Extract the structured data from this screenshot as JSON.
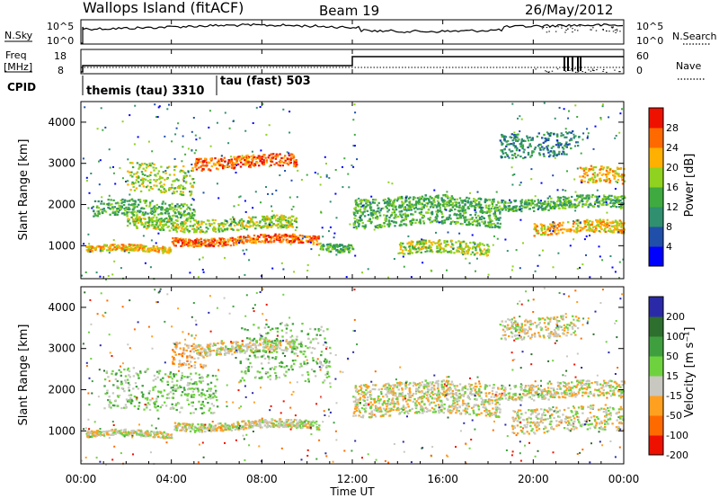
{
  "header": {
    "site": "Wallops Island (fitACF)",
    "beam": "Beam 19",
    "date": "26/May/2012"
  },
  "top_panels": {
    "nsky_label": "N.Sky",
    "nsky_ticks": [
      "10^5",
      "10^0"
    ],
    "nsearch_label": "N.Search",
    "nsearch_ticks": [
      "10^5",
      "10^0"
    ],
    "freq_label_1": "Freq",
    "freq_label_2": "[MHz]",
    "freq_ticks": [
      "18",
      "8"
    ],
    "nave_label": "Nave",
    "nave_ticks": [
      "60",
      "0"
    ],
    "cpid_label": "CPID",
    "cpid_1": "themis (tau) 3310",
    "cpid_2": "tau (fast) 503"
  },
  "time_axis": {
    "ticks": [
      "00:00",
      "04:00",
      "08:00",
      "12:00",
      "16:00",
      "20:00",
      "00:00"
    ],
    "label": "Time UT"
  },
  "chart_data": [
    {
      "type": "heatmap",
      "name": "power",
      "ylabel": "Slant Range [km]",
      "yticks": [
        "1000",
        "2000",
        "3000",
        "4000"
      ],
      "ylim": [
        200,
        4500
      ],
      "xlim_hours": [
        0,
        24
      ],
      "colorbar_label": "Power [dB]",
      "colorbar_ticks": [
        "4",
        "8",
        "12",
        "16",
        "20",
        "24",
        "28"
      ],
      "colors": [
        "#0000ff",
        "#1f4fa8",
        "#2f8f6f",
        "#3faa3f",
        "#8fd21f",
        "#ffb000",
        "#ff6a00",
        "#ee1100"
      ],
      "bands": [
        {
          "t": [
            0.2,
            4.0
          ],
          "r": [
            850,
            1000
          ],
          "level": 5
        },
        {
          "t": [
            4.0,
            10.5
          ],
          "r": [
            1050,
            1250
          ],
          "level": 6
        },
        {
          "t": [
            5.0,
            9.5
          ],
          "r": [
            2900,
            3200
          ],
          "level": 6
        },
        {
          "t": [
            2.0,
            9.5
          ],
          "r": [
            1400,
            1700
          ],
          "level": 4
        },
        {
          "t": [
            10.5,
            12.0
          ],
          "r": [
            900,
            1100
          ],
          "level": 3
        },
        {
          "t": [
            12.0,
            18.5
          ],
          "r": [
            1500,
            1900
          ],
          "level": 3
        },
        {
          "t": [
            12.0,
            24.0
          ],
          "r": [
            1900,
            2200
          ],
          "level": 3
        },
        {
          "t": [
            14.0,
            18.0
          ],
          "r": [
            800,
            1100
          ],
          "level": 4
        },
        {
          "t": [
            20.0,
            24.0
          ],
          "r": [
            1300,
            1600
          ],
          "level": 5
        },
        {
          "t": [
            22.0,
            24.0
          ],
          "r": [
            2500,
            2900
          ],
          "level": 5
        },
        {
          "t": [
            0.5,
            5.0
          ],
          "r": [
            1700,
            2100
          ],
          "level": 3
        },
        {
          "t": [
            2.0,
            5.0
          ],
          "r": [
            2300,
            3000
          ],
          "level": 4
        },
        {
          "t": [
            18.5,
            22.0
          ],
          "r": [
            3200,
            3800
          ],
          "level": 2
        }
      ]
    },
    {
      "type": "heatmap",
      "name": "velocity",
      "ylabel": "Slant Range [km]",
      "yticks": [
        "1000",
        "2000",
        "3000",
        "4000"
      ],
      "ylim": [
        200,
        4500
      ],
      "xlim_hours": [
        0,
        24
      ],
      "colorbar_label": "Velocity [m s⁻¹]",
      "colorbar_ticks": [
        "200",
        "100",
        "50",
        "15",
        "-15",
        "-50",
        "-100",
        "-200"
      ],
      "colors": [
        "#2a2aa8",
        "#2e6e2e",
        "#3f9f3f",
        "#6ed23f",
        "#c8c8c0",
        "#ffa020",
        "#ff6a00",
        "#ee1100"
      ],
      "bands": [
        {
          "t": [
            0.2,
            4.0
          ],
          "r": [
            850,
            1000
          ],
          "level": 4
        },
        {
          "t": [
            4.0,
            10.5
          ],
          "r": [
            1050,
            1250
          ],
          "level": 4
        },
        {
          "t": [
            5.0,
            9.5
          ],
          "r": [
            2900,
            3200
          ],
          "level": 4
        },
        {
          "t": [
            4.0,
            5.5
          ],
          "r": [
            2600,
            3200
          ],
          "level": 5
        },
        {
          "t": [
            12.0,
            24.0
          ],
          "r": [
            1800,
            2200
          ],
          "level": 4
        },
        {
          "t": [
            12.0,
            18.5
          ],
          "r": [
            1400,
            1800
          ],
          "level": 4
        },
        {
          "t": [
            1.0,
            6.0
          ],
          "r": [
            1500,
            2500
          ],
          "level": 3
        },
        {
          "t": [
            7.0,
            11.0
          ],
          "r": [
            2200,
            3600
          ],
          "level": 3
        },
        {
          "t": [
            19.0,
            24.0
          ],
          "r": [
            1000,
            1600
          ],
          "level": 4
        },
        {
          "t": [
            18.5,
            22.0
          ],
          "r": [
            3300,
            3800
          ],
          "level": 4
        }
      ]
    }
  ]
}
